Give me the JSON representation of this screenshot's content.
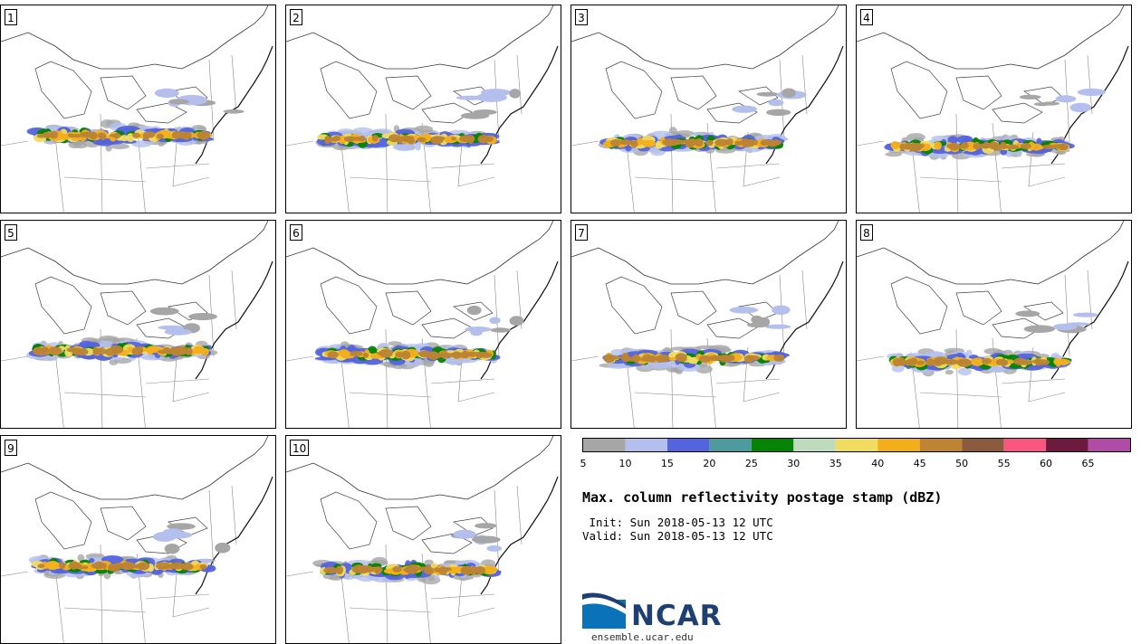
{
  "panels": [
    {
      "label": "1"
    },
    {
      "label": "2"
    },
    {
      "label": "3"
    },
    {
      "label": "4"
    },
    {
      "label": "5"
    },
    {
      "label": "6"
    },
    {
      "label": "7"
    },
    {
      "label": "8"
    },
    {
      "label": "9"
    },
    {
      "label": "10"
    }
  ],
  "colorbar": {
    "ticks": [
      "5",
      "10",
      "15",
      "20",
      "25",
      "30",
      "35",
      "40",
      "45",
      "50",
      "55",
      "60",
      "65"
    ],
    "colors": [
      "#a6a6a6",
      "#b4bfee",
      "#5464de",
      "#4f9a9e",
      "#058405",
      "#bcdcbd",
      "#f1dc62",
      "#f3af1b",
      "#bc8433",
      "#8b5b3f",
      "#f9577f",
      "#6d1a3f",
      "#b04ba6"
    ]
  },
  "title": "Max. column reflectivity postage stamp (dBZ)",
  "init_line": " Init: Sun 2018-05-13 12 UTC",
  "valid_line": "Valid: Sun 2018-05-13 12 UTC",
  "logo": {
    "text": "NCAR",
    "url": "ensemble.ucar.edu"
  }
}
